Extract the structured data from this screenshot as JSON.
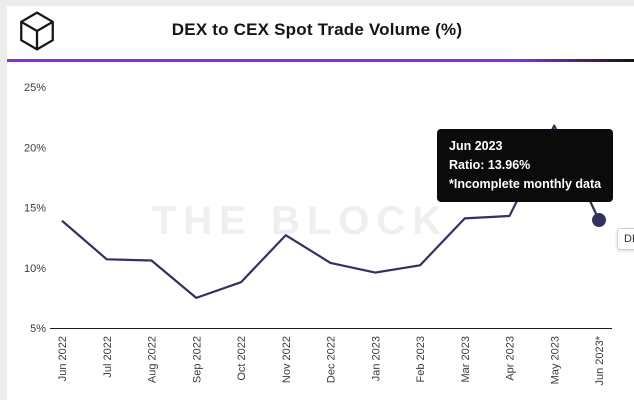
{
  "header": {
    "title": "DEX to CEX Spot Trade Volume (%)"
  },
  "brand": {
    "watermark": "THE BLOCK",
    "accent_color": "#8d2ae2"
  },
  "tooltip": {
    "title": "Jun 2023",
    "ratio_line": "Ratio: 13.96%",
    "note_line": "*Incomplete monthly data"
  },
  "legend_clipped_text": "DE",
  "chart_data": {
    "type": "line",
    "title": "DEX to CEX Spot Trade Volume (%)",
    "categories": [
      "Jun 2022",
      "Jul 2022",
      "Aug 2022",
      "Sep 2022",
      "Oct 2022",
      "Nov 2022",
      "Dec 2022",
      "Jan 2023",
      "Feb 2023",
      "Mar 2023",
      "Apr 2023",
      "May 2023",
      "Jun 2023*"
    ],
    "values": [
      13.9,
      10.7,
      10.6,
      7.5,
      8.8,
      12.7,
      10.4,
      9.6,
      10.2,
      14.1,
      14.3,
      21.8,
      13.96
    ],
    "xlabel": "",
    "ylabel": "",
    "ylim": [
      5,
      25
    ],
    "yticks": [
      5,
      10,
      15,
      20,
      25
    ],
    "ytick_suffix": "%",
    "grid": false,
    "legend_position": "none",
    "line_color": "#34305f",
    "marker_index": 12,
    "highlighted_point": {
      "label": "Jun 2023",
      "value": 13.96,
      "note": "*Incomplete monthly data"
    }
  }
}
